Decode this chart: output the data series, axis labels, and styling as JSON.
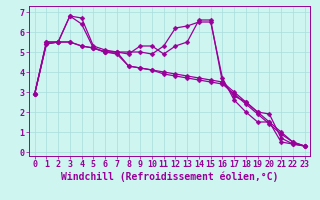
{
  "title": "",
  "xlabel": "Windchill (Refroidissement éolien,°C)",
  "bg_color": "#cef5f0",
  "line_color": "#990099",
  "grid_color": "#aadddd",
  "xlim": [
    -0.5,
    23.5
  ],
  "ylim": [
    -0.2,
    7.3
  ],
  "xticks": [
    0,
    1,
    2,
    3,
    4,
    5,
    6,
    7,
    8,
    9,
    10,
    11,
    12,
    13,
    14,
    15,
    16,
    17,
    18,
    19,
    20,
    21,
    22,
    23
  ],
  "yticks": [
    0,
    1,
    2,
    3,
    4,
    5,
    6,
    7
  ],
  "series": [
    [
      2.9,
      5.5,
      5.5,
      6.8,
      6.7,
      5.3,
      5.1,
      5.0,
      5.0,
      5.0,
      4.9,
      5.3,
      6.2,
      6.3,
      6.5,
      6.5,
      3.7,
      2.6,
      2.0,
      1.5,
      1.5,
      0.5,
      0.4,
      0.3
    ],
    [
      2.9,
      5.5,
      5.5,
      6.8,
      6.4,
      5.2,
      5.0,
      5.0,
      4.9,
      5.3,
      5.3,
      4.9,
      5.3,
      5.5,
      6.6,
      6.6,
      3.5,
      2.8,
      2.5,
      2.0,
      1.9,
      0.7,
      0.4,
      0.3
    ],
    [
      2.9,
      5.4,
      5.5,
      5.5,
      5.3,
      5.2,
      5.0,
      5.0,
      4.3,
      4.2,
      4.1,
      4.0,
      3.9,
      3.8,
      3.7,
      3.6,
      3.5,
      3.0,
      2.5,
      2.0,
      1.5,
      1.0,
      0.5,
      0.3
    ],
    [
      2.9,
      5.4,
      5.5,
      5.5,
      5.3,
      5.2,
      5.0,
      4.9,
      4.3,
      4.2,
      4.1,
      3.9,
      3.8,
      3.7,
      3.6,
      3.5,
      3.4,
      2.9,
      2.4,
      1.9,
      1.4,
      0.9,
      0.5,
      0.3
    ]
  ],
  "font_color": "#990099",
  "xlabel_fontsize": 7,
  "tick_fontsize": 6,
  "marker_size": 2.5,
  "linewidth": 0.9
}
